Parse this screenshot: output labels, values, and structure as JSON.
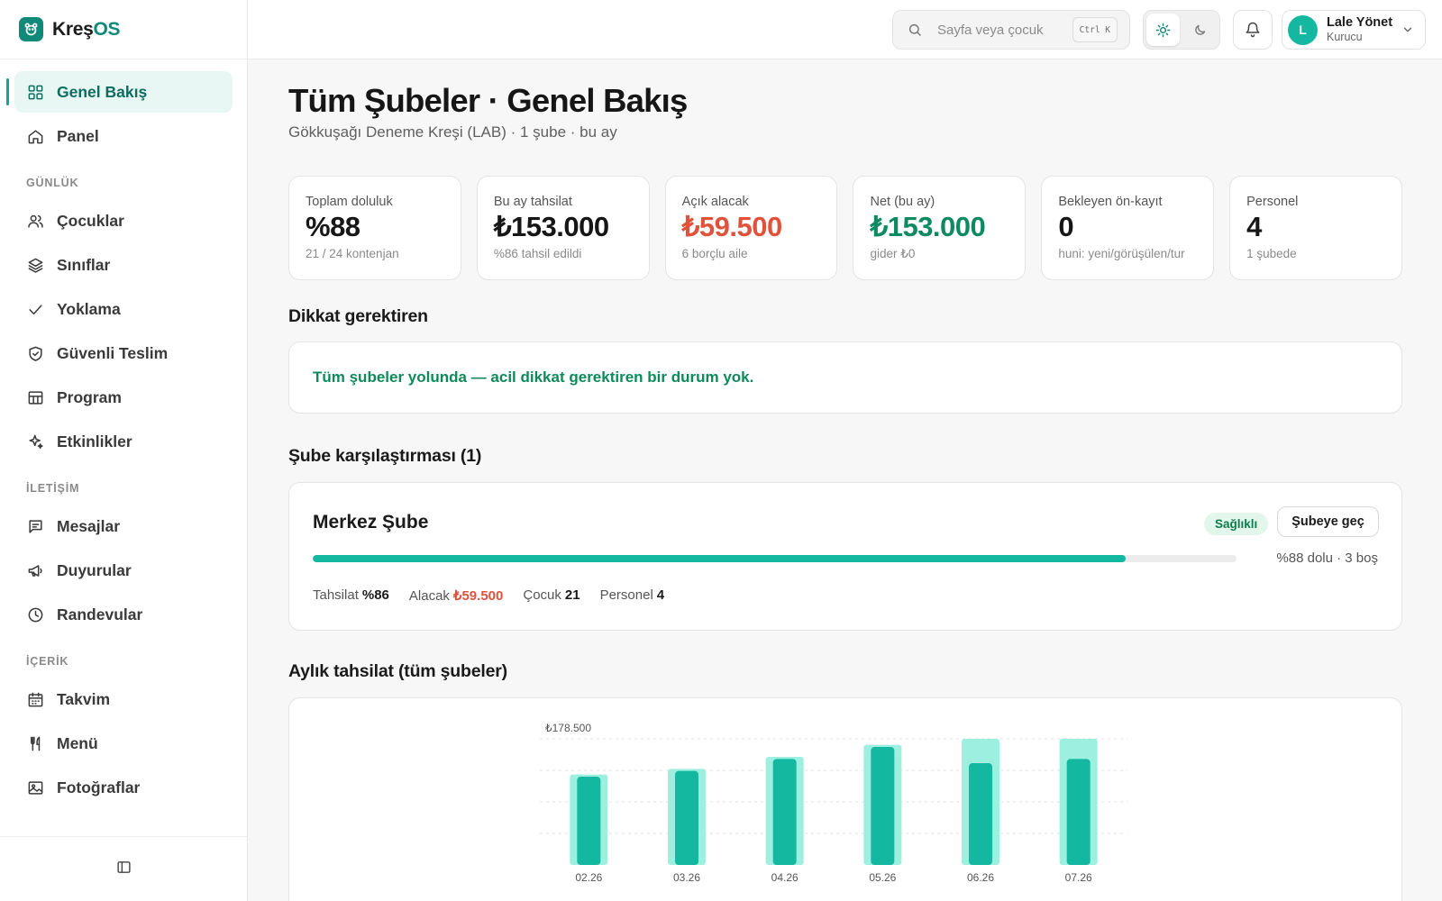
{
  "brand": {
    "name_main": "Kreş",
    "name_accent": "OS",
    "accent_color": "#0f8a78"
  },
  "sidebar": {
    "top_items": [
      {
        "label": "Genel Bakış",
        "icon": "grid-icon",
        "active": true
      },
      {
        "label": "Panel",
        "icon": "home-icon"
      }
    ],
    "sections": [
      {
        "title": "GÜNLÜK",
        "items": [
          {
            "label": "Çocuklar",
            "icon": "users-icon"
          },
          {
            "label": "Sınıflar",
            "icon": "layers-icon"
          },
          {
            "label": "Yoklama",
            "icon": "check-icon"
          },
          {
            "label": "Güvenli Teslim",
            "icon": "shield-icon"
          },
          {
            "label": "Program",
            "icon": "table-icon"
          },
          {
            "label": "Etkinlikler",
            "icon": "sparkle-icon"
          }
        ]
      },
      {
        "title": "İLETİŞİM",
        "items": [
          {
            "label": "Mesajlar",
            "icon": "message-icon"
          },
          {
            "label": "Duyurular",
            "icon": "megaphone-icon"
          },
          {
            "label": "Randevular",
            "icon": "clock-icon"
          }
        ]
      },
      {
        "title": "İÇERİK",
        "items": [
          {
            "label": "Takvim",
            "icon": "calendar-icon"
          },
          {
            "label": "Menü",
            "icon": "utensils-icon"
          },
          {
            "label": "Fotoğraflar",
            "icon": "image-icon"
          }
        ]
      }
    ]
  },
  "topbar": {
    "search_placeholder": "Sayfa veya çocuk",
    "shortcut": "Ctrl K",
    "user": {
      "initial": "L",
      "name": "Lale Yönet",
      "role": "Kurucu"
    }
  },
  "page": {
    "title": "Tüm Şubeler · Genel Bakış",
    "subtitle": "Gökkuşağı Deneme Kreşi (LAB) · 1 şube · bu ay"
  },
  "stats": [
    {
      "label": "Toplam doluluk",
      "value": "%88",
      "note": "21 / 24 kontenjan",
      "tone": ""
    },
    {
      "label": "Bu ay tahsilat",
      "value": "₺153.000",
      "note": "%86 tahsil edildi",
      "tone": ""
    },
    {
      "label": "Açık alacak",
      "value": "₺59.500",
      "note": "6 borçlu aile",
      "tone": "red"
    },
    {
      "label": "Net (bu ay)",
      "value": "₺153.000",
      "note": "gider ₺0",
      "tone": "green"
    },
    {
      "label": "Bekleyen ön-kayıt",
      "value": "0",
      "note": "huni: yeni/görüşülen/tur",
      "tone": ""
    },
    {
      "label": "Personel",
      "value": "4",
      "note": "1 şubede",
      "tone": ""
    }
  ],
  "attention": {
    "title": "Dikkat gerektiren",
    "message": "Tüm şubeler yolunda — acil dikkat gerektiren bir durum yok."
  },
  "comparison": {
    "title": "Şube karşılaştırması (1)",
    "branch": {
      "name": "Merkez Şube",
      "status": "Sağlıklı",
      "action": "Şubeye geç",
      "occupancy_pct": 88,
      "occupancy_text": "%88 dolu · 3 boş",
      "meta": [
        {
          "label": "Tahsilat",
          "value": "%86",
          "tone": ""
        },
        {
          "label": "Alacak",
          "value": "₺59.500",
          "tone": "red"
        },
        {
          "label": "Çocuk",
          "value": "21",
          "tone": ""
        },
        {
          "label": "Personel",
          "value": "4",
          "tone": ""
        }
      ]
    }
  },
  "monthly": {
    "title": "Aylık tahsilat (tüm şubeler)"
  },
  "chart_data": {
    "type": "bar",
    "categories": [
      "02.26",
      "03.26",
      "04.26",
      "05.26",
      "06.26",
      "07.26"
    ],
    "max_label": "₺178.500",
    "ylim": [
      0,
      178500
    ],
    "series": [
      {
        "values": [
          128000,
          136000,
          153000,
          170000,
          178500,
          178500
        ],
        "color": "#9df0e0"
      },
      {
        "values": [
          125000,
          133000,
          150000,
          167000,
          144000,
          150000
        ],
        "color": "#14b8a0"
      }
    ],
    "grid": true
  }
}
